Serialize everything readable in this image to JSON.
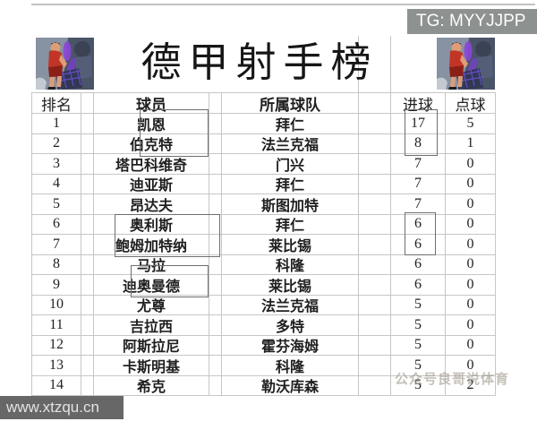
{
  "page": {
    "title": "德甲射手榜"
  },
  "badge": {
    "label": "TG: MYYJJPP"
  },
  "watermarks": {
    "channel": "公众号良哥说体育",
    "site_url": "www.xtzqu.cn"
  },
  "table": {
    "headers": {
      "rank": "排名",
      "player": "球员",
      "team": "所属球队",
      "goals": "进球",
      "penalties": "点球"
    },
    "rows": [
      {
        "rank": "1",
        "player": "凯恩",
        "team": "拜仁",
        "goals": "17",
        "penalties": "5"
      },
      {
        "rank": "2",
        "player": "伯克特",
        "team": "法兰克福",
        "goals": "8",
        "penalties": "1"
      },
      {
        "rank": "3",
        "player": "塔巴科维奇",
        "team": "门兴",
        "goals": "7",
        "penalties": "0"
      },
      {
        "rank": "4",
        "player": "迪亚斯",
        "team": "拜仁",
        "goals": "7",
        "penalties": "0"
      },
      {
        "rank": "5",
        "player": "昂达夫",
        "team": "斯图加特",
        "goals": "7",
        "penalties": "0"
      },
      {
        "rank": "6",
        "player": "奥利斯",
        "team": "拜仁",
        "goals": "6",
        "penalties": "0"
      },
      {
        "rank": "7",
        "player": "鲍姆加特纳",
        "team": "莱比锡",
        "goals": "6",
        "penalties": "0"
      },
      {
        "rank": "8",
        "player": "马拉",
        "team": "科隆",
        "goals": "6",
        "penalties": "0"
      },
      {
        "rank": "9",
        "player": "迪奥曼德",
        "team": "莱比锡",
        "goals": "6",
        "penalties": "0"
      },
      {
        "rank": "10",
        "player": "尤尊",
        "team": "法兰克福",
        "goals": "5",
        "penalties": "0"
      },
      {
        "rank": "11",
        "player": "吉拉西",
        "team": "多特",
        "goals": "5",
        "penalties": "0"
      },
      {
        "rank": "12",
        "player": "阿斯拉尼",
        "team": "霍芬海姆",
        "goals": "5",
        "penalties": "0"
      },
      {
        "rank": "13",
        "player": "卡斯明基",
        "team": "科隆",
        "goals": "5",
        "penalties": "0"
      },
      {
        "rank": "14",
        "player": "希克",
        "team": "勒沃库森",
        "goals": "5",
        "penalties": "2"
      }
    ],
    "annotations": {
      "boxed_players": [
        [
          "凯恩",
          "伯克特"
        ],
        [
          "奥利斯",
          "鲍姆加特纳"
        ],
        [
          "迪奥曼德"
        ]
      ],
      "boxed_goals": [
        [
          "17",
          "8"
        ],
        [
          "6",
          "6"
        ]
      ]
    }
  },
  "colors": {
    "badge_bg": "#8d918f",
    "grid_line": "#c6c6c6",
    "annotation_box": "#6f6f6f",
    "url_box_bg": "#555555",
    "text": "#1f1f1f"
  }
}
